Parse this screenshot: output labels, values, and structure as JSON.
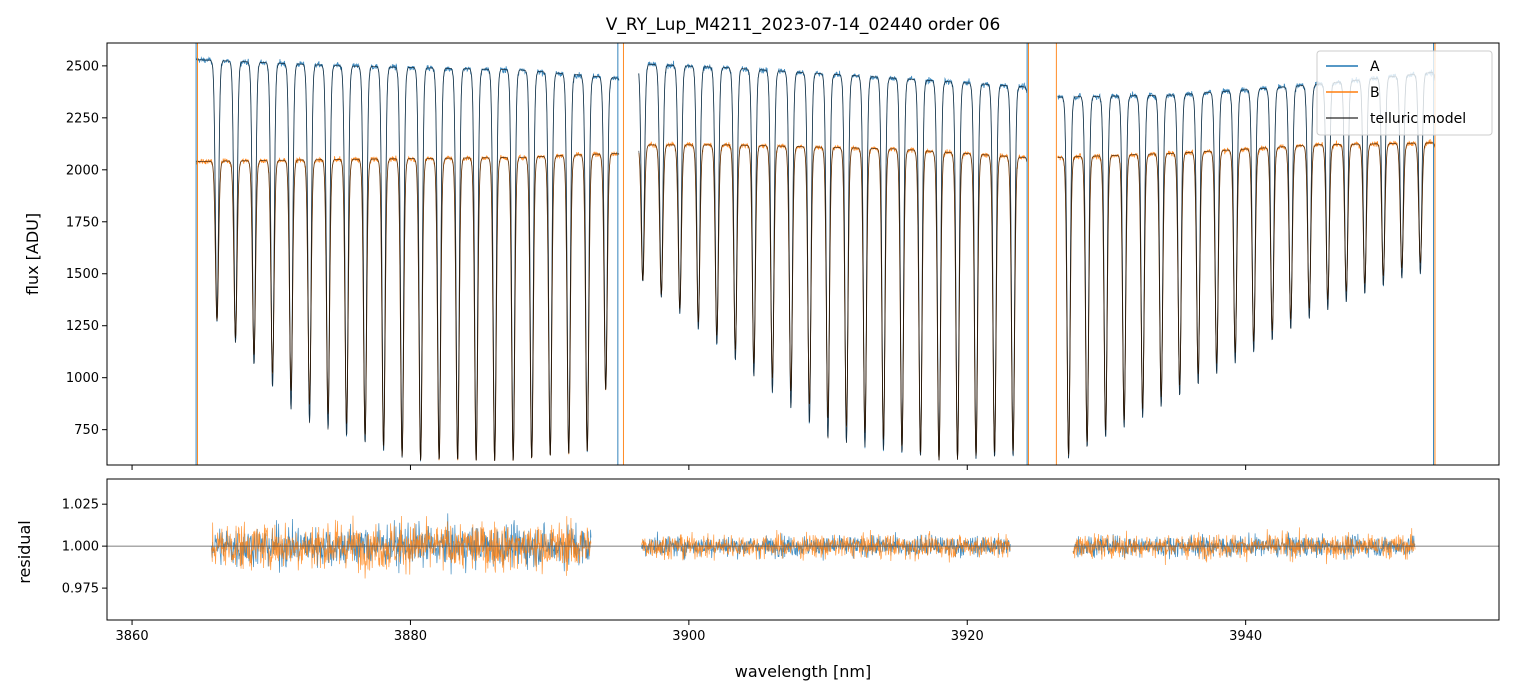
{
  "chart_data": [
    {
      "type": "line",
      "title": "V_RY_Lup_M4211_2023-07-14_02440  order 06",
      "xlabel": "",
      "ylabel": "flux [ADU]",
      "xlim": [
        3858.2,
        3958.2
      ],
      "ylim": [
        580,
        2610
      ],
      "yticks": [
        750,
        1000,
        1250,
        1500,
        1750,
        2000,
        2250,
        2500
      ],
      "xticks": [
        3860,
        3880,
        3900,
        3920,
        3940
      ],
      "legend": {
        "placement": "top-right",
        "entries": [
          "A",
          "B",
          "telluric model"
        ]
      },
      "gaps": [
        [
          3895.0,
          3896.4
        ],
        [
          3924.3,
          3926.5
        ]
      ],
      "series": [
        {
          "name": "A",
          "color": "#1f77b4",
          "x_range": [
            3864.6,
            3953.6
          ],
          "continuum": [
            [
              3864.6,
              2530
            ],
            [
              3875,
              2500
            ],
            [
              3888,
              2480
            ],
            [
              3895,
              2440
            ],
            [
              3896.5,
              2510
            ],
            [
              3903,
              2490
            ],
            [
              3915,
              2440
            ],
            [
              3924,
              2400
            ],
            [
              3926.6,
              2350
            ],
            [
              3935,
              2360
            ],
            [
              3945,
              2410
            ],
            [
              3953.6,
              2470
            ]
          ]
        },
        {
          "name": "B",
          "color": "#ff7f0e",
          "x_range": [
            3864.6,
            3953.6
          ],
          "continuum": [
            [
              3864.6,
              2040
            ],
            [
              3875,
              2050
            ],
            [
              3888,
              2060
            ],
            [
              3895,
              2080
            ],
            [
              3896.5,
              2120
            ],
            [
              3903,
              2120
            ],
            [
              3915,
              2100
            ],
            [
              3924,
              2060
            ],
            [
              3926.6,
              2060
            ],
            [
              3935,
              2080
            ],
            [
              3945,
              2120
            ],
            [
              3953.6,
              2130
            ]
          ]
        },
        {
          "name": "telluric model",
          "color": "#000000"
        }
      ],
      "absorption_lines_A": {
        "x_start": 3866.1,
        "spacing": 1.33,
        "count": 68,
        "min_flux": [
          [
            3866,
            1280
          ],
          [
            3872,
            800
          ],
          [
            3880,
            600
          ],
          [
            3888,
            600
          ],
          [
            3893,
            650
          ],
          [
            3896,
            1500
          ],
          [
            3903,
            1100
          ],
          [
            3910,
            700
          ],
          [
            3918,
            600
          ],
          [
            3924,
            620
          ],
          [
            3927,
            600
          ],
          [
            3935,
            900
          ],
          [
            3945,
            1300
          ],
          [
            3952,
            1500
          ]
        ]
      },
      "absorption_lines_B": {
        "x_start": 3866.1,
        "spacing": 1.33,
        "count": 68,
        "min_flux": [
          [
            3866,
            1280
          ],
          [
            3872,
            900
          ],
          [
            3880,
            600
          ],
          [
            3888,
            600
          ],
          [
            3893,
            650
          ],
          [
            3896,
            1500
          ],
          [
            3903,
            1150
          ],
          [
            3910,
            800
          ],
          [
            3918,
            600
          ],
          [
            3924,
            650
          ],
          [
            3927,
            620
          ],
          [
            3935,
            950
          ],
          [
            3945,
            1350
          ],
          [
            3952,
            1550
          ]
        ]
      }
    },
    {
      "type": "line",
      "title": "",
      "xlabel": "wavelength [nm]",
      "ylabel": "residual",
      "xlim": [
        3858.2,
        3958.2
      ],
      "ylim": [
        0.956,
        1.04
      ],
      "yticks": [
        0.975,
        1.0,
        1.025
      ],
      "xticks": [
        3860,
        3880,
        3900,
        3920,
        3940
      ],
      "xticklabels": [
        "3860",
        "3880",
        "3900",
        "3920",
        "3940"
      ],
      "reference_line": 1.0,
      "segments": [
        [
          3865.7,
          3893.0
        ],
        [
          3896.6,
          3923.1
        ],
        [
          3927.6,
          3952.2
        ]
      ],
      "series": [
        {
          "name": "A",
          "color": "#1f77b4",
          "noise_sigma": [
            [
              3865.7,
              0.012
            ],
            [
              3893,
              0.012
            ],
            [
              3896.6,
              0.006
            ],
            [
              3952.2,
              0.006
            ]
          ]
        },
        {
          "name": "B",
          "color": "#ff7f0e",
          "noise_sigma": [
            [
              3865.7,
              0.014
            ],
            [
              3893,
              0.014
            ],
            [
              3896.6,
              0.007
            ],
            [
              3952.2,
              0.007
            ]
          ]
        }
      ]
    }
  ]
}
